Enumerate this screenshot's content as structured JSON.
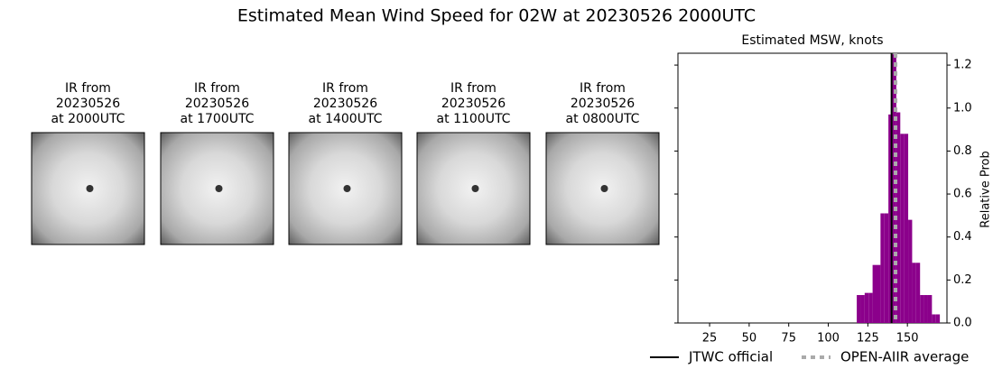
{
  "chart_data": {
    "type": "histogram",
    "title": "Estimated Mean Wind Speed for 02W at 20230526 2000UTC",
    "panels": [
      {
        "title": [
          "IR from",
          "20230526",
          "at 2000UTC"
        ]
      },
      {
        "title": [
          "IR from",
          "20230526",
          "at 1700UTC"
        ]
      },
      {
        "title": [
          "IR from",
          "20230526",
          "at 1400UTC"
        ]
      },
      {
        "title": [
          "IR from",
          "20230526",
          "at 1100UTC"
        ]
      },
      {
        "title": [
          "IR from",
          "20230526",
          "at 0800UTC"
        ]
      }
    ],
    "axis_title": "Estimated MSW, knots",
    "ylabel": "Relative Prob",
    "color": "#8b008b",
    "bins": [
      118,
      120.5,
      123,
      125.5,
      128,
      130.5,
      133,
      135.5,
      138,
      140.5,
      143,
      145.5,
      148,
      150.5,
      153,
      155.5,
      158,
      160.5,
      163,
      165.5,
      168,
      170.5
    ],
    "values": [
      0.13,
      0.13,
      0.14,
      0.14,
      0.27,
      0.27,
      0.51,
      0.51,
      0.97,
      1.25,
      0.98,
      0.88,
      0.88,
      0.48,
      0.28,
      0.28,
      0.13,
      0.13,
      0.13,
      0.04,
      0.04
    ],
    "xlim": [
      5,
      175
    ],
    "xticks": [
      25,
      50,
      75,
      100,
      125,
      150
    ],
    "ylim": [
      0,
      1.255
    ],
    "yticks": [
      {
        "value": 0,
        "label": "0.0"
      },
      {
        "value": 0.2,
        "label": "0.2"
      },
      {
        "value": 0.4,
        "label": "0.4"
      },
      {
        "value": 0.6,
        "label": "0.6"
      },
      {
        "value": 0.8,
        "label": "0.8"
      },
      {
        "value": 1.0,
        "label": "1.0"
      },
      {
        "value": 1.2,
        "label": "1.2"
      }
    ],
    "vlines": [
      {
        "name": "JTWC official",
        "value": 140,
        "color": "#000000",
        "dashed": false
      },
      {
        "name": "OPEN-AIIR average",
        "value": 142.5,
        "color": "#aaaaaa",
        "dashed": true
      }
    ]
  }
}
